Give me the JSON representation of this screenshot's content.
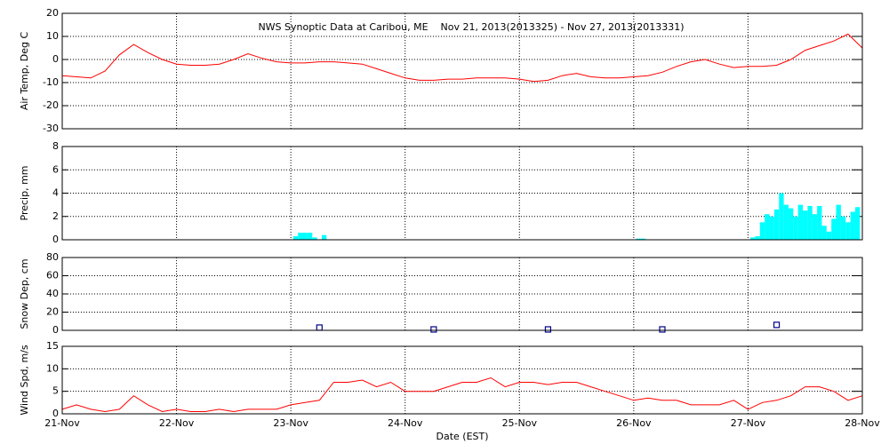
{
  "chart_data": [
    {
      "type": "line",
      "title": "NWS Synoptic Data at Caribou, ME    Nov 21, 2013(2013325) - Nov 27, 2013(2013331)",
      "y_label": "Air Temp, Deg C",
      "color": "#ff0000",
      "grid": true,
      "xlim": [
        0,
        168
      ],
      "xticks": [
        0,
        24,
        48,
        72,
        96,
        120,
        144,
        168
      ],
      "ylim": [
        -30,
        20
      ],
      "yticks": [
        -30,
        -20,
        -10,
        0,
        10,
        20
      ],
      "x": [
        0,
        3,
        6,
        9,
        12,
        15,
        18,
        21,
        24,
        27,
        30,
        33,
        36,
        39,
        42,
        45,
        48,
        51,
        54,
        57,
        60,
        63,
        66,
        69,
        72,
        75,
        78,
        81,
        84,
        87,
        90,
        93,
        96,
        99,
        102,
        105,
        108,
        111,
        114,
        117,
        120,
        123,
        126,
        129,
        132,
        135,
        138,
        141,
        144,
        147,
        150,
        153,
        156,
        159,
        162,
        165,
        168
      ],
      "values": [
        -7,
        -7.5,
        -8,
        -5,
        2,
        6.5,
        3,
        0,
        -2,
        -2.5,
        -2.5,
        -2,
        0,
        2.5,
        0.5,
        -1,
        -1.5,
        -1.5,
        -1,
        -1,
        -1.5,
        -2,
        -4,
        -6,
        -8,
        -9,
        -9,
        -8.5,
        -8.5,
        -8,
        -8,
        -8,
        -8.5,
        -9.5,
        -9,
        -7,
        -6,
        -7.5,
        -8,
        -8,
        -7.5,
        -7,
        -5.5,
        -3,
        -1,
        0,
        -2,
        -3.5,
        -3,
        -3,
        -2.5,
        0,
        4,
        6,
        8,
        11,
        5
      ]
    },
    {
      "type": "bar",
      "y_label": "Precip, mm",
      "color": "#00ffff",
      "grid": true,
      "xlim": [
        0,
        168
      ],
      "xticks": [
        0,
        24,
        48,
        72,
        96,
        120,
        144,
        168
      ],
      "ylim": [
        0,
        8
      ],
      "yticks": [
        0,
        2,
        4,
        6,
        8
      ],
      "x": [
        49,
        50,
        51,
        52,
        53,
        55,
        121,
        122,
        145,
        146,
        147,
        148,
        149,
        150,
        151,
        152,
        153,
        154,
        155,
        156,
        157,
        158,
        159,
        160,
        161,
        162,
        163,
        164,
        165,
        166,
        167
      ],
      "values": [
        0.3,
        0.6,
        0.6,
        0.6,
        0.2,
        0.4,
        0.1,
        0.1,
        0.2,
        0.3,
        1.5,
        2.2,
        2.0,
        2.6,
        4.0,
        3.0,
        2.7,
        2.0,
        3.0,
        2.5,
        2.9,
        2.2,
        2.9,
        1.2,
        0.7,
        1.8,
        3.0,
        2.0,
        1.5,
        2.4,
        2.8
      ]
    },
    {
      "type": "scatter",
      "y_label": "Snow Dep, cm",
      "color": "#00008b",
      "grid": true,
      "xlim": [
        0,
        168
      ],
      "xticks": [
        0,
        24,
        48,
        72,
        96,
        120,
        144,
        168
      ],
      "ylim": [
        0,
        80
      ],
      "yticks": [
        0,
        20,
        40,
        60,
        80
      ],
      "x": [
        54,
        78,
        102,
        126,
        150
      ],
      "values": [
        3,
        1,
        1,
        1,
        6
      ]
    },
    {
      "type": "line",
      "y_label": "Wind Spd, m/s",
      "x_label": "Date (EST)",
      "color": "#ff0000",
      "grid": true,
      "xlim": [
        0,
        168
      ],
      "xticks": [
        {
          "value": 0,
          "label": "21-Nov"
        },
        {
          "value": 24,
          "label": "22-Nov"
        },
        {
          "value": 48,
          "label": "23-Nov"
        },
        {
          "value": 72,
          "label": "24-Nov"
        },
        {
          "value": 96,
          "label": "25-Nov"
        },
        {
          "value": 120,
          "label": "26-Nov"
        },
        {
          "value": 144,
          "label": "27-Nov"
        },
        {
          "value": 168,
          "label": "28-Nov"
        }
      ],
      "ylim": [
        0,
        15
      ],
      "yticks": [
        0,
        5,
        10,
        15
      ],
      "x": [
        0,
        3,
        6,
        9,
        12,
        15,
        18,
        21,
        24,
        27,
        30,
        33,
        36,
        39,
        42,
        45,
        48,
        51,
        54,
        57,
        60,
        63,
        66,
        69,
        72,
        75,
        78,
        81,
        84,
        87,
        90,
        93,
        96,
        99,
        102,
        105,
        108,
        111,
        114,
        117,
        120,
        123,
        126,
        129,
        132,
        135,
        138,
        141,
        144,
        147,
        150,
        153,
        156,
        159,
        162,
        165,
        168
      ],
      "values": [
        1,
        2,
        1,
        0.5,
        1,
        4,
        2,
        0.5,
        1,
        0.5,
        0.5,
        1,
        0.5,
        1,
        1,
        1,
        2,
        2.5,
        3,
        7,
        7,
        7.5,
        6,
        7,
        5,
        5,
        5,
        6,
        7,
        7,
        8,
        6,
        7,
        7,
        6.5,
        7,
        7,
        6,
        5,
        4,
        3,
        3.5,
        3,
        3,
        2,
        2,
        2,
        3,
        1,
        2.5,
        3,
        4,
        6,
        6,
        5,
        3,
        4
      ]
    }
  ]
}
